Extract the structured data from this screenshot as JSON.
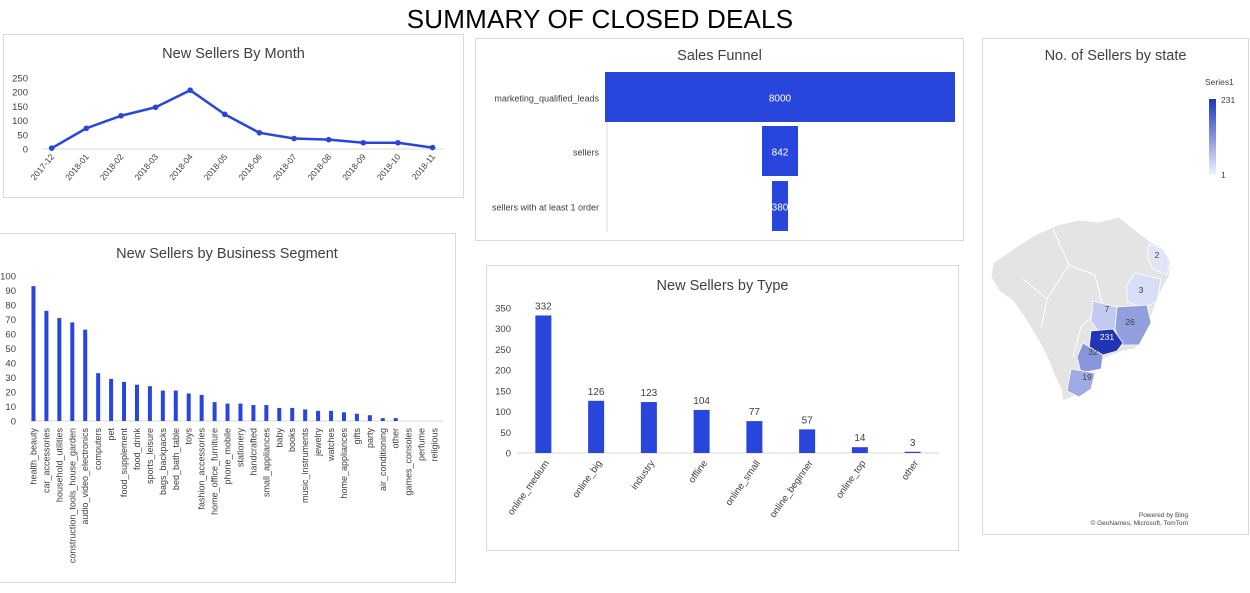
{
  "dashboard_title": "SUMMARY OF CLOSED DEALS",
  "bar_color": "#2946DC",
  "chart_data": [
    {
      "id": "new_sellers_by_month",
      "type": "line",
      "title": "New Sellers By Month",
      "x": [
        "2017-12",
        "2018-01",
        "2018-02",
        "2018-03",
        "2018-04",
        "2018-05",
        "2018-06",
        "2018-07",
        "2018-08",
        "2018-09",
        "2018-10",
        "2018-11"
      ],
      "values": [
        3,
        73,
        117,
        147,
        207,
        122,
        57,
        37,
        33,
        22,
        22,
        5
      ],
      "yticks": [
        "0",
        "50",
        "100",
        "150",
        "200",
        "250"
      ],
      "ylim": [
        0,
        250
      ],
      "grid": false
    },
    {
      "id": "sales_funnel",
      "type": "bar",
      "orientation": "funnel",
      "title": "Sales Funnel",
      "categories": [
        "marketing_qualified_leads",
        "sellers",
        "sellers with at least 1 order"
      ],
      "values": [
        8000,
        842,
        380
      ],
      "labels": [
        "8000",
        "842",
        "380"
      ]
    },
    {
      "id": "new_sellers_by_segment",
      "type": "bar",
      "title": "New Sellers by Business Segment",
      "categories": [
        "health_beauty",
        "car_accessories",
        "household_utilities",
        "construction_tools_house_garden",
        "audio_video_electronics",
        "computers",
        "pet",
        "food_supplement",
        "food_drink",
        "sports_leisure",
        "bags_backpacks",
        "bed_bath_table",
        "toys",
        "fashion_accessories",
        "home_office_furniture",
        "phone_mobile",
        "stationery",
        "handcrafted",
        "small_appliances",
        "baby",
        "books",
        "music_instruments",
        "jewelry",
        "watches",
        "home_appliances",
        "gifts",
        "party",
        "air_conditioning",
        "other",
        "games_consoles",
        "perfume",
        "religious"
      ],
      "values": [
        93,
        76,
        71,
        68,
        63,
        33,
        29,
        27,
        25,
        24,
        21,
        21,
        19,
        18,
        13,
        12,
        12,
        11,
        11,
        9,
        9,
        8,
        7,
        7,
        6,
        5,
        4,
        2,
        2,
        0,
        0,
        0
      ],
      "yticks": [
        "0",
        "10",
        "20",
        "30",
        "40",
        "50",
        "60",
        "70",
        "80",
        "90",
        "100"
      ],
      "ylim": [
        0,
        100
      ],
      "grid": false
    },
    {
      "id": "new_sellers_by_type",
      "type": "bar",
      "title": "New Sellers by Type",
      "categories": [
        "online_medium",
        "online_big",
        "industry",
        "offline",
        "online_small",
        "online_beginner",
        "online_top",
        "other"
      ],
      "values": [
        332,
        126,
        123,
        104,
        77,
        57,
        14,
        3
      ],
      "labels": [
        "332",
        "126",
        "123",
        "104",
        "77",
        "57",
        "14",
        "3"
      ],
      "yticks": [
        "0",
        "50",
        "100",
        "150",
        "200",
        "250",
        "300",
        "350"
      ],
      "ylim": [
        0,
        350
      ],
      "grid": false
    },
    {
      "id": "sellers_by_state",
      "type": "heatmap",
      "title": "No. of Sellers by state",
      "legend": {
        "series": "Series1",
        "max_label": "231",
        "min_label": "1",
        "min_color": "#F0F3FF",
        "max_color": "#1F35B5"
      },
      "region_labels": [
        "2",
        "3",
        "7",
        "26",
        "231",
        "32",
        "19"
      ],
      "region_values": [
        2,
        3,
        7,
        26,
        231,
        32,
        19
      ],
      "attribution": [
        "Powered by Bing",
        "© GeoNames, Microsoft, TomTom"
      ]
    }
  ]
}
